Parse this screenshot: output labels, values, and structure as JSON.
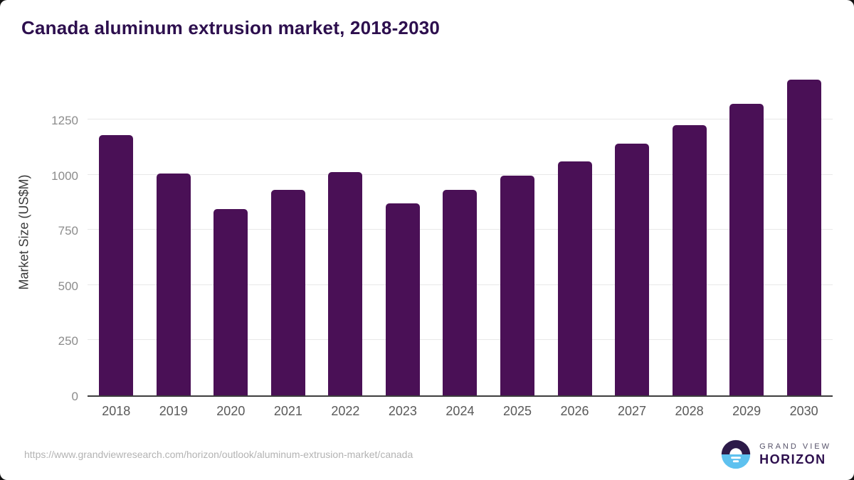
{
  "title": "Canada aluminum extrusion market, 2018-2030",
  "chart_data": {
    "type": "bar",
    "title": "Canada aluminum extrusion market, 2018-2030",
    "categories": [
      "2018",
      "2019",
      "2020",
      "2021",
      "2022",
      "2023",
      "2024",
      "2025",
      "2026",
      "2027",
      "2028",
      "2029",
      "2030"
    ],
    "values": [
      1180,
      1005,
      845,
      930,
      1010,
      870,
      930,
      995,
      1060,
      1140,
      1225,
      1320,
      1430
    ],
    "xlabel": "",
    "ylabel": "Market Size (US$M)",
    "ylim": [
      0,
      1485
    ],
    "yticks": [
      0,
      250,
      500,
      750,
      1000,
      1250
    ],
    "grid": true,
    "legend": "none",
    "bar_color": "#4a1056"
  },
  "footer": {
    "source_url": "https://www.grandviewresearch.com/horizon/outlook/aluminum-extrusion-market/canada",
    "logo": {
      "line1": "GRAND VIEW",
      "line2": "HORIZON"
    }
  },
  "colors": {
    "title": "#2d0f4e",
    "bar": "#4a1056",
    "gridline": "#e8e8e8",
    "axis_line": "#3d3d3d",
    "tick_label": "#8c8c8c",
    "x_label": "#595959",
    "url_text": "#b3b3b3",
    "logo_purple": "#2d1b49",
    "logo_blue": "#5ec1ef"
  }
}
